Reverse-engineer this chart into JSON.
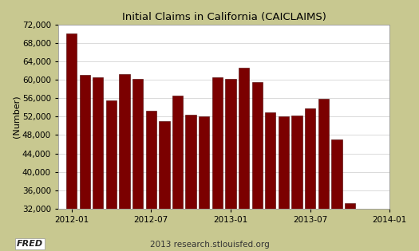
{
  "title": "Initial Claims in California (CAICLAIMS)",
  "ylabel": "(Number)",
  "footer": "2013 research.stlouisfed.org",
  "bar_color": "#7B0000",
  "bar_edge_color": "#4A0000",
  "background_color": "#C8C890",
  "plot_background_color": "#FFFFFF",
  "ylim": [
    32000,
    72000
  ],
  "yticks": [
    32000,
    36000,
    40000,
    44000,
    48000,
    52000,
    56000,
    60000,
    64000,
    68000,
    72000
  ],
  "values": [
    70000,
    61000,
    60600,
    55500,
    61200,
    60200,
    53200,
    51000,
    56500,
    52400,
    52000,
    60500,
    60200,
    62600,
    59400,
    53000,
    52000,
    52200,
    53800,
    55800,
    47000,
    33200
  ],
  "n_months": 22,
  "xlim_max": 24.5,
  "xtick_positions": [
    0.5,
    6.5,
    12.5,
    18.5,
    24.5
  ],
  "xtick_labels": [
    "2012-01",
    "2012-07",
    "2013-01",
    "2013-07",
    "2014-01"
  ],
  "grid_color": "#CCCCCC",
  "title_fontsize": 9.5,
  "tick_fontsize": 7.5,
  "ylabel_fontsize": 8
}
